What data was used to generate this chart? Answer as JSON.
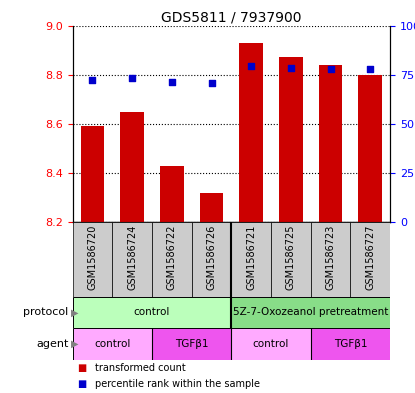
{
  "title": "GDS5811 / 7937900",
  "samples": [
    "GSM1586720",
    "GSM1586724",
    "GSM1586722",
    "GSM1586726",
    "GSM1586721",
    "GSM1586725",
    "GSM1586723",
    "GSM1586727"
  ],
  "bar_values": [
    8.59,
    8.65,
    8.43,
    8.32,
    8.93,
    8.87,
    8.84,
    8.8
  ],
  "bar_bottom": 8.2,
  "dot_values": [
    72.5,
    73.5,
    71.5,
    71.0,
    79.5,
    78.5,
    78.0,
    78.0
  ],
  "bar_color": "#cc0000",
  "dot_color": "#0000cc",
  "ylim_left": [
    8.2,
    9.0
  ],
  "ylim_right": [
    0,
    100
  ],
  "yticks_left": [
    8.2,
    8.4,
    8.6,
    8.8,
    9.0
  ],
  "yticks_right": [
    0,
    25,
    50,
    75,
    100
  ],
  "ytick_labels_right": [
    "0",
    "25",
    "50",
    "75",
    "100%"
  ],
  "protocol_groups": [
    {
      "label": "control",
      "start": 0,
      "end": 4,
      "color": "#bbffbb"
    },
    {
      "label": "5Z-7-Oxozeanol pretreatment",
      "start": 4,
      "end": 8,
      "color": "#88dd88"
    }
  ],
  "agent_groups": [
    {
      "label": "control",
      "start": 0,
      "end": 2,
      "color": "#ffaaff"
    },
    {
      "label": "TGFβ1",
      "start": 2,
      "end": 4,
      "color": "#ee55ee"
    },
    {
      "label": "control",
      "start": 4,
      "end": 6,
      "color": "#ffaaff"
    },
    {
      "label": "TGFβ1",
      "start": 6,
      "end": 8,
      "color": "#ee55ee"
    }
  ],
  "legend_items": [
    {
      "label": "transformed count",
      "color": "#cc0000"
    },
    {
      "label": "percentile rank within the sample",
      "color": "#0000cc"
    }
  ],
  "bar_width": 0.6,
  "sample_bg_color": "#cccccc",
  "chart_bg_color": "#ffffff"
}
